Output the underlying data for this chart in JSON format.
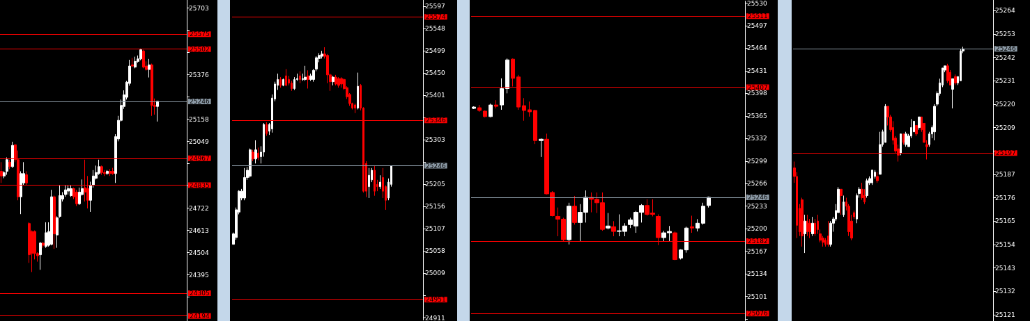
{
  "chart_data": [
    {
      "type": "candlestick",
      "tick_labels": "y",
      "categories": [
        null,
        null,
        null,
        null,
        null,
        null,
        null,
        null,
        null,
        null,
        null,
        null,
        null,
        null,
        null,
        null,
        null,
        null,
        null,
        null,
        null,
        null,
        null,
        null,
        null,
        null,
        null,
        null,
        null,
        null,
        null,
        null,
        null,
        null,
        null,
        null,
        null,
        null,
        null,
        null,
        null,
        null,
        null,
        null,
        null,
        null,
        null,
        null,
        null,
        null,
        null,
        null,
        null,
        null,
        null,
        null,
        null,
        null,
        null,
        null,
        null,
        null,
        null,
        null,
        null,
        null,
        null
      ],
      "colors": [
        "#ff0000",
        "#ffffff",
        "#ffffff",
        "#ff0000",
        "#ffffff",
        "#ff0000",
        "#ff0000",
        "#ffffff",
        "#ffffff",
        "#ff0000",
        "#ff0000",
        "#ff0000",
        "#ff0000",
        "#ff0000",
        "#ffffff",
        "#ff0000",
        "#ffffff",
        "#ffffff",
        "#ffffff",
        "#ff0000",
        "#ffffff",
        "#ffffff",
        "#ffffff",
        "#ffffff",
        "#ffffff",
        "#ffffff",
        "#ff0000",
        "#ff0000",
        "#ffffff",
        "#ffffff",
        "#ff0000",
        "#ff0000",
        "#ffffff",
        "#ffffff",
        "#ffffff",
        "#ffffff",
        "#ff0000",
        "#ff0000",
        "#ffffff",
        "#ff0000",
        "#ff0000",
        "#ffffff",
        "#ffffff",
        "#ffffff",
        "#ffffff",
        "#ffffff",
        "#ffffff",
        "#ff0000",
        "#ffffff",
        "#ffffff",
        "#ffffff",
        "#ff0000",
        "#ff0000",
        "#ffffff",
        "#ff0000",
        "#ff0000",
        "#ffffff",
        null,
        null,
        null,
        null,
        null,
        null,
        null,
        null,
        null,
        null
      ],
      "ohlc": [
        [
          24903,
          24948,
          24846,
          24880
        ],
        [
          24880,
          24903,
          24869,
          24897
        ],
        [
          24903,
          24971,
          24886,
          24960
        ],
        [
          24948,
          24960,
          24914,
          24926
        ],
        [
          24926,
          25048,
          24920,
          25030
        ],
        [
          25033,
          25036,
          24948,
          24960
        ],
        [
          24960,
          25005,
          24761,
          24778
        ],
        [
          24778,
          24903,
          24693,
          24892
        ],
        [
          24846,
          24948,
          24835,
          24892
        ],
        [
          24886,
          24903,
          24835,
          24846
        ],
        [
          24647,
          24653,
          24454,
          24494
        ],
        [
          24608,
          24613,
          24409,
          24500
        ],
        [
          24608,
          24613,
          24471,
          24500
        ],
        [
          24500,
          24506,
          24460,
          24489
        ],
        [
          24494,
          24557,
          24420,
          24551
        ],
        [
          24551,
          24557,
          24528,
          24540
        ],
        [
          24534,
          24653,
          24528,
          24602
        ],
        [
          24540,
          24653,
          24534,
          24608
        ],
        [
          24545,
          24812,
          24540,
          24778
        ],
        [
          24778,
          24784,
          24523,
          24596
        ],
        [
          24591,
          24682,
          24528,
          24676
        ],
        [
          24682,
          24835,
          24676,
          24784
        ],
        [
          24767,
          24801,
          24755,
          24784
        ],
        [
          24789,
          24835,
          24778,
          24812
        ],
        [
          24806,
          24835,
          24789,
          24818
        ],
        [
          24784,
          24835,
          24778,
          24818
        ],
        [
          24818,
          24823,
          24767,
          24778
        ],
        [
          24801,
          24812,
          24733,
          24744
        ],
        [
          24744,
          24823,
          24738,
          24801
        ],
        [
          24789,
          24863,
          24784,
          24818
        ],
        [
          24823,
          24960,
          24755,
          24801
        ],
        [
          24818,
          24880,
          24721,
          24761
        ],
        [
          24761,
          24852,
          24704,
          24835
        ],
        [
          24835,
          24909,
          24823,
          24880
        ],
        [
          24869,
          24931,
          24863,
          24897
        ],
        [
          24892,
          24960,
          24886,
          24926
        ],
        [
          24926,
          24931,
          24886,
          24897
        ],
        [
          24897,
          24909,
          24880,
          24892
        ],
        [
          24892,
          24909,
          24886,
          24903
        ],
        [
          24903,
          24914,
          24880,
          24892
        ],
        [
          24903,
          24920,
          24886,
          24892
        ],
        [
          24892,
          25085,
          24846,
          25073
        ],
        [
          25062,
          25175,
          25050,
          25153
        ],
        [
          25153,
          25255,
          25147,
          25226
        ],
        [
          25221,
          25300,
          25209,
          25278
        ],
        [
          25266,
          25346,
          25255,
          25340
        ],
        [
          25334,
          25450,
          25323,
          25419
        ],
        [
          25425,
          25459,
          25414,
          25419
        ],
        [
          25414,
          25465,
          25408,
          25442
        ],
        [
          25442,
          25471,
          25436,
          25454
        ],
        [
          25454,
          25505,
          25448,
          25499
        ],
        [
          25493,
          25499,
          25408,
          25414
        ],
        [
          25419,
          25442,
          25397,
          25402
        ],
        [
          25402,
          25454,
          25363,
          25425
        ],
        [
          25425,
          25431,
          25175,
          25226
        ],
        [
          25226,
          25260,
          25181,
          25221
        ],
        [
          25221,
          25249,
          25147,
          25247
        ],
        null,
        null,
        null,
        null,
        null,
        null,
        null,
        null,
        null,
        null
      ],
      "ylim": [
        24169,
        25743
      ],
      "yticks": [
        25703,
        {
          "value": 25594,
          "label": null
        },
        {
          "value": 25485,
          "label": null
        },
        25376,
        {
          "value": 25267,
          "label": null
        },
        25158,
        25049,
        {
          "value": 24940,
          "label": null
        },
        {
          "value": 24831,
          "label": null
        },
        24722,
        24613,
        24504,
        24395,
        {
          "value": 24286,
          "label": null
        }
      ],
      "ref_lines": [
        {
          "axis": "y",
          "value": 25575,
          "label": "25575",
          "color": "#ff0000"
        },
        {
          "axis": "y",
          "value": 25502,
          "label": "25502",
          "color": "#ff0000"
        },
        {
          "axis": "y",
          "value": 25246,
          "label": "25246",
          "color": "#8c9aa6"
        },
        {
          "axis": "y",
          "value": 24967,
          "label": "24967",
          "color": "#ff0000"
        },
        {
          "axis": "y",
          "value": 24835,
          "label": "24835",
          "color": "#ff0000"
        },
        {
          "axis": "y",
          "value": 24305,
          "label": "24305",
          "color": "#ff0000"
        },
        {
          "axis": "y",
          "value": 24194,
          "label": "24194",
          "color": "#ff0000"
        }
      ]
    },
    {
      "type": "candlestick",
      "tick_labels": "y",
      "categories": [
        null,
        null,
        null,
        null,
        null,
        null,
        null,
        null,
        null,
        null,
        null,
        null,
        null,
        null,
        null,
        null,
        null,
        null,
        null,
        null,
        null,
        null,
        null,
        null,
        null,
        null,
        null,
        null,
        null,
        null,
        null,
        null,
        null,
        null,
        null,
        null,
        null,
        null,
        null,
        null,
        null,
        null,
        null,
        null,
        null,
        null,
        null,
        null,
        null,
        null,
        null,
        null,
        null,
        null,
        null,
        null,
        null,
        null,
        null,
        null,
        null,
        null,
        null,
        null,
        null,
        null,
        null,
        null,
        null
      ],
      "colors": [
        "#ffffff",
        "#ffffff",
        "#ffffff",
        "#ffffff",
        "#ffffff",
        "#ffffff",
        "#ffffff",
        "#ff0000",
        "#ffffff",
        "#ff0000",
        "#ffffff",
        "#ffffff",
        "#ff0000",
        "#ffffff",
        "#ffffff",
        "#ffffff",
        "#ffffff",
        "#ff0000",
        "#ffffff",
        "#ff0000",
        "#ff0000",
        "#ff0000",
        "#ffffff",
        "#ffffff",
        "#ff0000",
        "#ffffff",
        "#ffffff",
        "#ff0000",
        "#ffffff",
        "#ffffff",
        "#ffffff",
        "#ffffff",
        "#ffffff",
        "#ff0000",
        "#ff0000",
        "#ff0000",
        "#ffffff",
        "#ff0000",
        "#ff0000",
        "#ff0000",
        "#ff0000",
        "#ff0000",
        "#ff0000",
        "#ff0000",
        "#ff0000",
        "#ffffff",
        "#ff0000",
        "#ff0000",
        "#ff0000",
        "#ffffff",
        "#ffffff",
        "#ff0000",
        "#ff0000",
        "#ffffff",
        "#ff0000",
        "#ff0000",
        "#ffffff",
        "#ffffff",
        null,
        null,
        null,
        null,
        null,
        null,
        null,
        null,
        null,
        null,
        null
      ],
      "ohlc": [
        [
          25073,
          25099,
          25073,
          25096
        ],
        [
          25088,
          25154,
          25083,
          25149
        ],
        [
          25144,
          25192,
          25139,
          25190
        ],
        [
          25175,
          25195,
          25170,
          25190
        ],
        [
          25175,
          25241,
          25170,
          25220
        ],
        [
          25220,
          25243,
          25215,
          25236
        ],
        [
          25223,
          25284,
          25220,
          25281
        ],
        [
          25276,
          25281,
          25256,
          25261
        ],
        [
          25261,
          25302,
          25251,
          25281
        ],
        [
          25274,
          25286,
          25258,
          25264
        ],
        [
          25266,
          25289,
          25251,
          25276
        ],
        [
          25276,
          25340,
          25266,
          25337
        ],
        [
          25337,
          25342,
          25312,
          25317
        ],
        [
          25322,
          25340,
          25314,
          25337
        ],
        [
          25327,
          25403,
          25319,
          25395
        ],
        [
          25393,
          25431,
          25388,
          25426
        ],
        [
          25423,
          25449,
          25413,
          25436
        ],
        [
          25436,
          25441,
          25418,
          25423
        ],
        [
          25423,
          25438,
          25421,
          25436
        ],
        [
          25444,
          25459,
          25421,
          25423
        ],
        [
          25436,
          25444,
          25423,
          25428
        ],
        [
          25428,
          25433,
          25411,
          25416
        ],
        [
          25416,
          25441,
          25413,
          25436
        ],
        [
          25436,
          25449,
          25433,
          25438
        ],
        [
          25444,
          25454,
          25428,
          25436
        ],
        [
          25436,
          25449,
          25433,
          25438
        ],
        [
          25436,
          25466,
          25433,
          25441
        ],
        [
          25444,
          25456,
          25416,
          25436
        ],
        [
          25436,
          25449,
          25433,
          25444
        ],
        [
          25436,
          25459,
          25431,
          25456
        ],
        [
          25459,
          25487,
          25454,
          25484
        ],
        [
          25482,
          25494,
          25474,
          25489
        ],
        [
          25487,
          25499,
          25482,
          25492
        ],
        [
          25492,
          25507,
          25482,
          25487
        ],
        [
          25489,
          25492,
          25428,
          25446
        ],
        [
          25446,
          25449,
          25411,
          25431
        ],
        [
          25431,
          25444,
          25423,
          25441
        ],
        [
          25441,
          25446,
          25423,
          25426
        ],
        [
          25438,
          25441,
          25418,
          25423
        ],
        [
          25438,
          25441,
          25418,
          25426
        ],
        [
          25436,
          25438,
          25413,
          25416
        ],
        [
          25418,
          25421,
          25393,
          25398
        ],
        [
          25403,
          25406,
          25378,
          25383
        ],
        [
          25383,
          25385,
          25370,
          25373
        ],
        [
          25380,
          25383,
          25362,
          25373
        ],
        [
          25373,
          25451,
          25370,
          25421
        ],
        [
          25423,
          25426,
          25368,
          25373
        ],
        [
          25373,
          25375,
          25187,
          25190
        ],
        [
          25251,
          25256,
          25177,
          25190
        ],
        [
          25200,
          25241,
          25175,
          25225
        ],
        [
          25215,
          25241,
          25210,
          25236
        ],
        [
          25236,
          25246,
          25180,
          25190
        ],
        [
          25205,
          25215,
          25190,
          25200
        ],
        [
          25200,
          25225,
          25195,
          25210
        ],
        [
          25220,
          25241,
          25175,
          25190
        ],
        [
          25200,
          25203,
          25149,
          25170
        ],
        [
          25175,
          25218,
          25170,
          25210
        ],
        [
          25205,
          25246,
          25200,
          25246
        ],
        null,
        null,
        null,
        null,
        null,
        null,
        null,
        null,
        null,
        null,
        null
      ],
      "ylim": [
        24906,
        25611
      ],
      "yticks": [
        25597,
        25548,
        25499,
        25450,
        25401,
        {
          "value": 25352,
          "label": null
        },
        25303,
        {
          "value": 25254,
          "label": null
        },
        25205,
        25156,
        25107,
        25058,
        25009,
        {
          "value": 24960,
          "label": null
        },
        24911
      ],
      "ref_lines": [
        {
          "axis": "y",
          "value": 25574,
          "label": "25574",
          "color": "#ff0000"
        },
        {
          "axis": "y",
          "value": 25346,
          "label": "25346",
          "color": "#ff0000"
        },
        {
          "axis": "y",
          "value": 25246,
          "label": "25246",
          "color": "#8c9aa6"
        },
        {
          "axis": "y",
          "value": 24951,
          "label": "24951",
          "color": "#ff0000"
        }
      ]
    },
    {
      "type": "candlestick",
      "tick_labels": "y",
      "categories": [
        null,
        null,
        null,
        null,
        null,
        null,
        null,
        null,
        null,
        null,
        null,
        null,
        null,
        null,
        null,
        null,
        null,
        null,
        null,
        null,
        null,
        null,
        null,
        null,
        null,
        null,
        null,
        null,
        null,
        null,
        null,
        null,
        null,
        null,
        null,
        null,
        null,
        null,
        null,
        null,
        null,
        null,
        null,
        null,
        null,
        null,
        null,
        null,
        null
      ],
      "colors": [
        "#ffffff",
        "#ff0000",
        "#ff0000",
        "#ffffff",
        "#ff0000",
        "#ffffff",
        "#ffffff",
        "#ff0000",
        "#ff0000",
        "#ff0000",
        "#ff0000",
        "#ff0000",
        "#ffffff",
        "#ff0000",
        "#ff0000",
        "#ff0000",
        "#ff0000",
        "#ffffff",
        "#ff0000",
        "#ffffff",
        "#ffffff",
        "#ff0000",
        "#ff0000",
        "#ff0000",
        "#ffffff",
        "#ff0000",
        "#ffffff",
        "#ffffff",
        "#ffffff",
        "#ffffff",
        "#ffffff",
        "#ff0000",
        "#ff0000",
        "#ff0000",
        "#ffffff",
        "#ffffff",
        "#ff0000",
        "#ffffff",
        "#ffffff",
        "#ff0000",
        "#ffffff",
        "#ffffff",
        "#ffffff",
        null,
        null,
        null,
        null,
        null,
        null
      ],
      "ohlc": [
        [
          25376,
          25379,
          25375,
          25378
        ],
        [
          25377,
          25381,
          25371,
          25373
        ],
        [
          25372,
          25373,
          25363,
          25364
        ],
        [
          25364,
          25383,
          25363,
          25381
        ],
        [
          25381,
          25388,
          25376,
          25379
        ],
        [
          25381,
          25420,
          25374,
          25405
        ],
        [
          25405,
          25449,
          25398,
          25447
        ],
        [
          25448,
          25449,
          25408,
          25420
        ],
        [
          25422,
          25425,
          25374,
          25378
        ],
        [
          25380,
          25391,
          25358,
          25373
        ],
        [
          25374,
          25386,
          25364,
          25371
        ],
        [
          25373,
          25374,
          25324,
          25329
        ],
        [
          25329,
          25332,
          25305,
          25331
        ],
        [
          25331,
          25339,
          25250,
          25251
        ],
        [
          25253,
          25255,
          25218,
          25219
        ],
        [
          25218,
          25231,
          25189,
          25214
        ],
        [
          25214,
          25216,
          25182,
          25184
        ],
        [
          25184,
          25238,
          25177,
          25233
        ],
        [
          25233,
          25248,
          25206,
          25209
        ],
        [
          25209,
          25236,
          25182,
          25224
        ],
        [
          25224,
          25256,
          25209,
          25246
        ],
        [
          25246,
          25253,
          25224,
          25243
        ],
        [
          25243,
          25253,
          25223,
          25238
        ],
        [
          25238,
          25253,
          25197,
          25199
        ],
        [
          25201,
          25223,
          25199,
          25204
        ],
        [
          25203,
          25211,
          25189,
          25196
        ],
        [
          25196,
          25221,
          25189,
          25197
        ],
        [
          25196,
          25208,
          25189,
          25204
        ],
        [
          25206,
          25216,
          25201,
          25213
        ],
        [
          25204,
          25226,
          25194,
          25224
        ],
        [
          25224,
          25236,
          25209,
          25234
        ],
        [
          25234,
          25243,
          25219,
          25221
        ],
        [
          25223,
          25243,
          25218,
          25221
        ],
        [
          25218,
          25221,
          25176,
          25187
        ],
        [
          25187,
          25197,
          25181,
          25194
        ],
        [
          25194,
          25204,
          25182,
          25196
        ],
        [
          25194,
          25196,
          25154,
          25155
        ],
        [
          25157,
          25170,
          25155,
          25169
        ],
        [
          25169,
          25203,
          25165,
          25201
        ],
        [
          25203,
          25219,
          25194,
          25201
        ],
        [
          25201,
          25214,
          25196,
          25208
        ],
        [
          25208,
          25238,
          25206,
          25233
        ],
        [
          25234,
          25247,
          25231,
          25246
        ],
        null,
        null,
        null,
        null,
        null,
        null
      ],
      "ylim": [
        25065,
        25533
      ],
      "yticks": [
        25530,
        25497,
        25464,
        25431,
        25398,
        25365,
        25332,
        25299,
        25266,
        25233,
        25200,
        25167,
        25134,
        25101,
        {
          "value": 25068,
          "label": null
        }
      ],
      "ref_lines": [
        {
          "axis": "y",
          "value": 25511,
          "label": "25511",
          "color": "#ff0000"
        },
        {
          "axis": "y",
          "value": 25407,
          "label": "25407",
          "color": "#ff0000"
        },
        {
          "axis": "y",
          "value": 25246,
          "label": "25246",
          "color": "#8c9aa6"
        },
        {
          "axis": "y",
          "value": 25182,
          "label": "25182",
          "color": "#ff0000"
        },
        {
          "axis": "y",
          "value": 25076,
          "label": "25076",
          "color": "#ff0000"
        }
      ]
    },
    {
      "type": "candlestick",
      "tick_labels": "y",
      "categories": [
        null,
        null,
        null,
        null,
        null,
        null,
        null,
        null,
        null,
        null,
        null,
        null,
        null,
        null,
        null,
        null,
        null,
        null,
        null,
        null,
        null,
        null,
        null,
        null,
        null,
        null,
        null,
        null,
        null,
        null,
        null,
        null,
        null,
        null,
        null,
        null,
        null,
        null,
        null,
        null,
        null,
        null,
        null,
        null,
        null,
        null,
        null,
        null,
        null,
        null,
        null,
        null,
        null,
        null,
        null,
        null,
        null,
        null,
        null,
        null,
        null,
        null,
        null,
        null,
        null,
        null,
        null,
        null,
        null,
        null,
        null,
        null,
        null,
        null,
        null,
        null,
        null
      ],
      "colors": [
        "#ff0000",
        "#ff0000",
        "#ff0000",
        "#ff0000",
        "#ffffff",
        "#ff0000",
        "#ff0000",
        "#ffffff",
        "#ff0000",
        "#ff0000",
        "#ff0000",
        "#ff0000",
        "#ff0000",
        "#ff0000",
        "#ffffff",
        "#ffffff",
        "#ffffff",
        "#ffffff",
        "#ff0000",
        "#ffffff",
        "#ff0000",
        "#ff0000",
        "#ff0000",
        "#ff0000",
        "#ffffff",
        "#ffffff",
        "#ff0000",
        "#ff0000",
        "#ffffff",
        "#ffffff",
        "#ffffff",
        "#ffffff",
        "#ff0000",
        "#ffffff",
        "#ffffff",
        "#ffffff",
        "#ff0000",
        "#ff0000",
        "#ff0000",
        "#ff0000",
        "#ff0000",
        "#ffffff",
        "#ff0000",
        "#ffffff",
        "#ffffff",
        "#ffffff",
        "#ffffff",
        "#ff0000",
        "#ffffff",
        "#ff0000",
        "#ff0000",
        "#ff0000",
        "#ffffff",
        "#ffffff",
        "#ffffff",
        "#ffffff",
        "#ffffff",
        "#ffffff",
        "#ffffff",
        "#ff0000",
        "#ff0000",
        "#ffffff",
        "#ff0000",
        "#ffffff",
        "#ffffff",
        "#ffffff",
        null,
        null,
        null,
        null,
        null,
        null,
        null,
        null,
        null,
        null,
        null
      ],
      "ohlc": [
        [
          25190,
          25193,
          25183,
          25186
        ],
        [
          25186,
          25188,
          25157,
          25163
        ],
        [
          25171,
          25173,
          25158,
          25160
        ],
        [
          25175,
          25176,
          25153,
          25158
        ],
        [
          25159,
          25168,
          25150,
          25165
        ],
        [
          25165,
          25168,
          25158,
          25160
        ],
        [
          25164,
          25166,
          25157,
          25160
        ],
        [
          25159,
          25167,
          25158,
          25164
        ],
        [
          25164,
          25166,
          25158,
          25159
        ],
        [
          25165,
          25168,
          25159,
          25161
        ],
        [
          25159,
          25161,
          25155,
          25156
        ],
        [
          25157,
          25158,
          25153,
          25155
        ],
        [
          25156,
          25157,
          25153,
          25154
        ],
        [
          25158,
          25165,
          25153,
          25154
        ],
        [
          25154,
          25165,
          25153,
          25164
        ],
        [
          25164,
          25167,
          25160,
          25166
        ],
        [
          25166,
          25173,
          25165,
          25170
        ],
        [
          25169,
          25181,
          25169,
          25180
        ],
        [
          25180,
          25180,
          25168,
          25177
        ],
        [
          25168,
          25177,
          25167,
          25174
        ],
        [
          25174,
          25176,
          25170,
          25172
        ],
        [
          25172,
          25173,
          25158,
          25160
        ],
        [
          25165,
          25168,
          25156,
          25157
        ],
        [
          25169,
          25170,
          25166,
          25167
        ],
        [
          25166,
          25178,
          25164,
          25177
        ],
        [
          25178,
          25181,
          25176,
          25180
        ],
        [
          25180,
          25183,
          25175,
          25176
        ],
        [
          25177,
          25180,
          25173,
          25174
        ],
        [
          25177,
          25185,
          25176,
          25184
        ],
        [
          25183,
          25186,
          25182,
          25185
        ],
        [
          25183,
          25189,
          25182,
          25189
        ],
        [
          25186,
          25189,
          25185,
          25188
        ],
        [
          25186,
          25188,
          25183,
          25184
        ],
        [
          25187,
          25207,
          25187,
          25201
        ],
        [
          25201,
          25208,
          25200,
          25207
        ],
        [
          25202,
          25220,
          25202,
          25219
        ],
        [
          25219,
          25219,
          25210,
          25214
        ],
        [
          25214,
          25215,
          25207,
          25208
        ],
        [
          25209,
          25212,
          25201,
          25203
        ],
        [
          25204,
          25205,
          25197,
          25198
        ],
        [
          25199,
          25201,
          25193,
          25196
        ],
        [
          25197,
          25206,
          25196,
          25206
        ],
        [
          25206,
          25206,
          25201,
          25202
        ],
        [
          25201,
          25207,
          25200,
          25206
        ],
        [
          25200,
          25206,
          25200,
          25205
        ],
        [
          25205,
          25213,
          25204,
          25209
        ],
        [
          25207,
          25212,
          25207,
          25212
        ],
        [
          25210,
          25210,
          25205,
          25206
        ],
        [
          25209,
          25214,
          25208,
          25214
        ],
        [
          25214,
          25214,
          25207,
          25208
        ],
        [
          25211,
          25211,
          25202,
          25202
        ],
        [
          25201,
          25203,
          25194,
          25200
        ],
        [
          25201,
          25207,
          25200,
          25206
        ],
        [
          25206,
          25210,
          25204,
          25209
        ],
        [
          25207,
          25220,
          25203,
          25219
        ],
        [
          25220,
          25226,
          25219,
          25225
        ],
        [
          25225,
          25232,
          25224,
          25230
        ],
        [
          25229,
          25237,
          25228,
          25237
        ],
        [
          25236,
          25238,
          25235,
          25238
        ],
        [
          25238,
          25239,
          25230,
          25231
        ],
        [
          25235,
          25236,
          25229,
          25229
        ],
        [
          25227,
          25232,
          25218,
          25232
        ],
        [
          25233,
          25234,
          25229,
          25230
        ],
        [
          25230,
          25233,
          25229,
          25233
        ],
        [
          25231,
          25246,
          25231,
          25245
        ],
        [
          25245,
          25247,
          25244,
          25246
        ],
        null,
        null,
        null,
        null,
        null,
        null,
        null,
        null,
        null,
        null,
        null
      ],
      "ylim": [
        25118,
        25269
      ],
      "yticks": [
        25264,
        25253,
        25242,
        25231,
        25220,
        25209,
        {
          "value": 25198,
          "label": null
        },
        25187,
        25176,
        25165,
        25154,
        25143,
        25132,
        25121
      ],
      "ref_lines": [
        {
          "axis": "y",
          "value": 25246,
          "label": "25246",
          "color": "#8c9aa6"
        },
        {
          "axis": "y",
          "value": 25197,
          "label": "25197",
          "color": "#ff0000"
        }
      ]
    }
  ]
}
